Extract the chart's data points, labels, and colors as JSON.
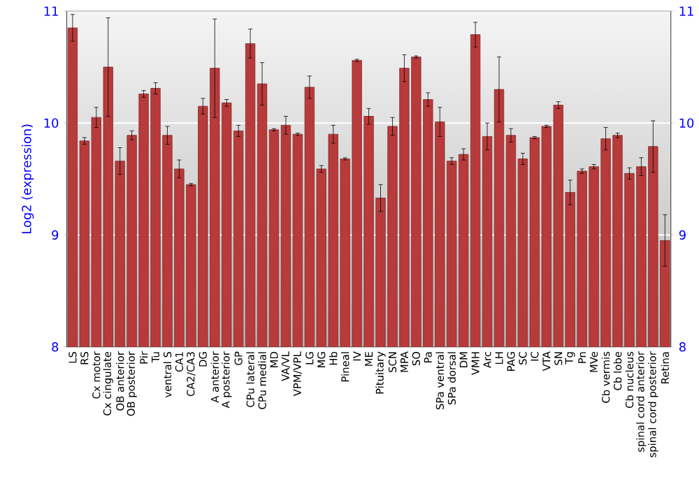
{
  "chart_data": {
    "type": "bar",
    "ylabel": "Log2 (expression)",
    "categories": [
      "LS",
      "RS",
      "Cx motor",
      "Cx cingulate",
      "OB anterior",
      "OB posterior",
      "Pir",
      "Tu",
      "ventral S",
      "CA1",
      "CA2/CA3",
      "DG",
      "A anterior",
      "A posterior",
      "GP",
      "CPu lateral",
      "CPu medial",
      "MD",
      "VA/VL",
      "VPM/VPL",
      "LG",
      "MG",
      "Hb",
      "Pineal",
      "IV",
      "ME",
      "Pituitary",
      "SCN",
      "MPA",
      "SO",
      "Pa",
      "SPa ventral",
      "SPa dorsal",
      "DM",
      "VMH",
      "Arc",
      "LH",
      "PAG",
      "SC",
      "IC",
      "VTA",
      "SN",
      "Tg",
      "Pn",
      "MVe",
      "Cb vermis",
      "Cb lobe",
      "Cb nucleus",
      "spinal cord anterior",
      "spinal cord posterior",
      "Retina"
    ],
    "values": [
      10.85,
      9.84,
      10.05,
      10.5,
      9.66,
      9.89,
      10.26,
      10.31,
      9.89,
      9.59,
      9.45,
      10.15,
      10.49,
      10.18,
      9.93,
      10.71,
      10.35,
      9.94,
      9.98,
      9.9,
      10.32,
      9.59,
      9.9,
      9.68,
      10.56,
      10.06,
      9.33,
      9.97,
      10.49,
      10.59,
      10.21,
      10.01,
      9.66,
      9.72,
      10.79,
      9.88,
      10.3,
      9.89,
      9.68,
      9.87,
      9.97,
      10.16,
      9.38,
      9.57,
      9.61,
      9.86,
      9.89,
      9.55,
      9.61,
      9.79,
      8.95
    ],
    "errors": [
      0.12,
      0.03,
      0.09,
      0.44,
      0.12,
      0.04,
      0.03,
      0.05,
      0.08,
      0.08,
      0.01,
      0.07,
      0.44,
      0.03,
      0.05,
      0.13,
      0.19,
      0.01,
      0.08,
      0.01,
      0.1,
      0.03,
      0.08,
      0.01,
      0.01,
      0.07,
      0.12,
      0.08,
      0.12,
      0.01,
      0.06,
      0.13,
      0.03,
      0.05,
      0.11,
      0.12,
      0.29,
      0.06,
      0.05,
      0.01,
      0.01,
      0.03,
      0.11,
      0.02,
      0.02,
      0.1,
      0.02,
      0.05,
      0.08,
      0.23,
      0.23
    ],
    "color": "#b83a3a",
    "ylim": [
      8,
      11
    ],
    "yticks": [
      8,
      9,
      10,
      11
    ],
    "y2lim": [
      8,
      11
    ],
    "y2ticks": [
      8,
      9,
      10,
      11
    ],
    "grid": "y"
  }
}
